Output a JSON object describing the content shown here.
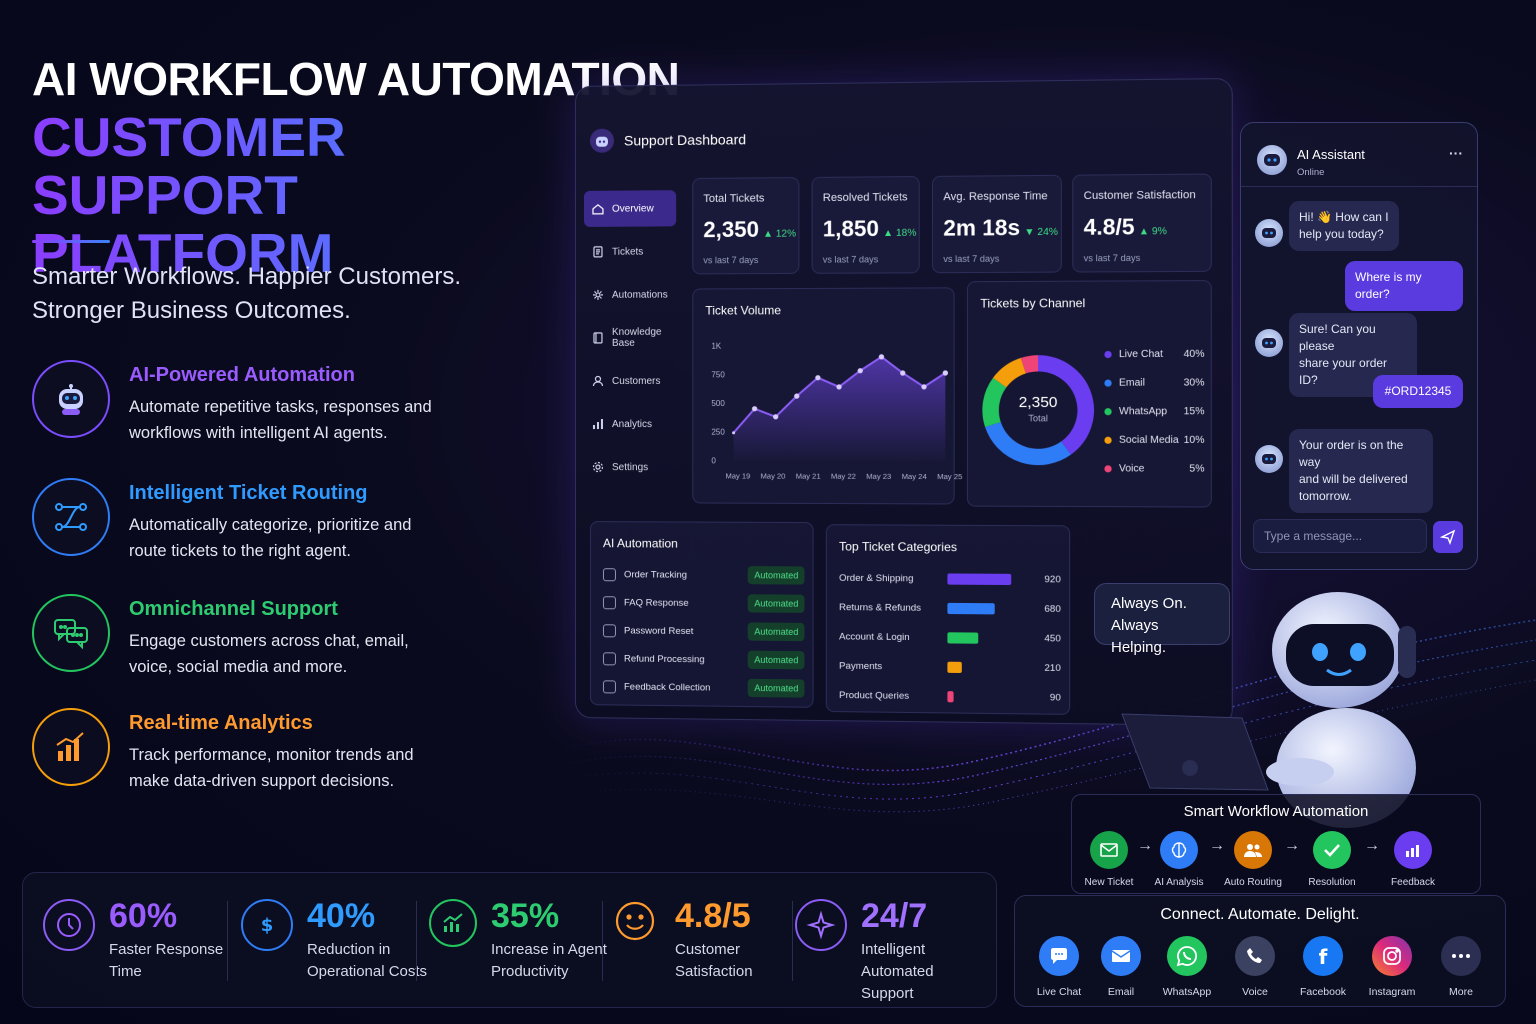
{
  "hero": {
    "title": "AI WORKFLOW AUTOMATION",
    "subtitle_line1": "CUSTOMER SUPPORT",
    "subtitle_line2": "PLATFORM",
    "tagline_line1": "Smarter Workflows. Happier Customers.",
    "tagline_line2": "Stronger Business Outcomes."
  },
  "features": [
    {
      "title": "AI-Powered Automation",
      "desc_line1": "Automate repetitive tasks, responses and",
      "desc_line2": "workflows with intelligent AI agents.",
      "color": "#9b5cff",
      "icon": "robot-icon"
    },
    {
      "title": "Intelligent Ticket Routing",
      "desc_line1": "Automatically categorize, prioritize and",
      "desc_line2": "route tickets to the right agent.",
      "color": "#2f9bff",
      "icon": "routing-icon"
    },
    {
      "title": "Omnichannel Support",
      "desc_line1": "Engage customers across chat, email,",
      "desc_line2": "voice, social media and more.",
      "color": "#2ecc71",
      "icon": "chat-bubbles-icon"
    },
    {
      "title": "Real-time Analytics",
      "desc_line1": "Track performance, monitor trends and",
      "desc_line2": "make data-driven support decisions.",
      "color": "#ff9a2e",
      "icon": "bar-chart-icon"
    }
  ],
  "stats": [
    {
      "value": "60%",
      "label_line1": "Faster Response",
      "label_line2": "Time",
      "color": "#9b5cff",
      "icon": "clock-icon"
    },
    {
      "value": "40%",
      "label_line1": "Reduction in",
      "label_line2": "Operational Costs",
      "color": "#2f9bff",
      "icon": "dollar-icon"
    },
    {
      "value": "35%",
      "label_line1": "Increase in Agent",
      "label_line2": "Productivity",
      "color": "#2ecc71",
      "icon": "trend-up-icon"
    },
    {
      "value": "4.8/5",
      "label_line1": "Customer",
      "label_line2": "Satisfaction",
      "color": "#ff9a2e",
      "icon": "smile-icon"
    },
    {
      "value": "24/7",
      "label_line1": "Intelligent Automated",
      "label_line2": "Support",
      "color": "#a070ff",
      "icon": "sparkle-icon"
    }
  ],
  "dashboard": {
    "title": "Support Dashboard",
    "nav": [
      {
        "label": "Overview",
        "active": true,
        "icon": "home-icon"
      },
      {
        "label": "Tickets",
        "active": false,
        "icon": "ticket-icon"
      },
      {
        "label": "Automations",
        "active": false,
        "icon": "gear-automation-icon"
      },
      {
        "label": "Knowledge Base",
        "active": false,
        "icon": "book-icon"
      },
      {
        "label": "Customers",
        "active": false,
        "icon": "user-icon"
      },
      {
        "label": "Analytics",
        "active": false,
        "icon": "analytics-icon"
      },
      {
        "label": "Settings",
        "active": false,
        "icon": "settings-icon"
      }
    ],
    "kpis": [
      {
        "label": "Total Tickets",
        "value": "2,350",
        "delta": "▲ 12%",
        "foot": "vs last 7 days"
      },
      {
        "label": "Resolved Tickets",
        "value": "1,850",
        "delta": "▲ 18%",
        "foot": "vs last 7 days"
      },
      {
        "label": "Avg. Response Time",
        "value": "2m 18s",
        "delta": "▼ 24%",
        "foot": "vs last 7 days"
      },
      {
        "label": "Customer Satisfaction",
        "value": "4.8/5",
        "delta": "▲ 9%",
        "foot": "vs last 7 days"
      }
    ],
    "ticket_volume_title": "Ticket Volume",
    "channel_title": "Tickets by Channel",
    "donut_value": "2,350",
    "donut_label": "Total",
    "automation_title": "AI Automation",
    "automations": [
      {
        "label": "Order Tracking",
        "status": "Automated"
      },
      {
        "label": "FAQ Response",
        "status": "Automated"
      },
      {
        "label": "Password Reset",
        "status": "Automated"
      },
      {
        "label": "Refund Processing",
        "status": "Automated"
      },
      {
        "label": "Feedback Collection",
        "status": "Automated"
      }
    ],
    "categories_title": "Top Ticket Categories"
  },
  "chart_data": [
    {
      "type": "area",
      "title": "Ticket Volume",
      "categories": [
        "May 19",
        "May 20",
        "May 21",
        "May 22",
        "May 23",
        "May 24",
        "May 25"
      ],
      "x": [
        "May 19",
        "May 19.5",
        "May 20",
        "May 20.5",
        "May 21",
        "May 22",
        "May 22.5",
        "May 23",
        "May 23.5",
        "May 24",
        "May 25"
      ],
      "values": [
        240,
        450,
        380,
        560,
        720,
        640,
        780,
        900,
        760,
        640,
        760
      ],
      "y_ticks": [
        "0",
        "250",
        "500",
        "750",
        "1K"
      ],
      "ylim": [
        0,
        1000
      ],
      "color": "#8b5cf6"
    },
    {
      "type": "pie",
      "title": "Tickets by Channel",
      "categories": [
        "Live Chat",
        "Email",
        "WhatsApp",
        "Social Media",
        "Voice"
      ],
      "values": [
        40,
        30,
        15,
        10,
        5
      ],
      "labels": [
        "40%",
        "30%",
        "15%",
        "10%",
        "5%"
      ],
      "colors": [
        "#6a3df0",
        "#2f7df6",
        "#22c55e",
        "#f59e0b",
        "#ef4477"
      ]
    },
    {
      "type": "bar",
      "title": "Top Ticket Categories",
      "categories": [
        "Order & Shipping",
        "Returns & Refunds",
        "Account & Login",
        "Payments",
        "Product Queries"
      ],
      "values": [
        920,
        680,
        450,
        210,
        90
      ],
      "colors": [
        "#6a3df0",
        "#2f7df6",
        "#22c55e",
        "#f59e0b",
        "#ef4477"
      ]
    }
  ],
  "chat": {
    "name": "AI Assistant",
    "status": "Online",
    "messages": [
      {
        "from": "bot",
        "line1": "Hi! 👋 How can I",
        "line2": "help you today?"
      },
      {
        "from": "user",
        "line1": "Where is my order?"
      },
      {
        "from": "bot",
        "line1": "Sure! Can you please",
        "line2": "share your order ID?"
      },
      {
        "from": "user",
        "line1": "#ORD12345"
      },
      {
        "from": "bot",
        "line1": "Your order is on the way",
        "line2": "and will be delivered",
        "line3": "tomorrow."
      }
    ],
    "placeholder": "Type a message...",
    "menu": "···"
  },
  "speech": {
    "line1": "Always On.",
    "line2": "Always Helping."
  },
  "workflow": {
    "title": "Smart Workflow Automation",
    "steps": [
      {
        "label": "New Ticket",
        "color": "#16a34a",
        "icon": "mail-icon"
      },
      {
        "label": "AI Analysis",
        "color": "#2f7df6",
        "icon": "brain-icon"
      },
      {
        "label": "Auto Routing",
        "color": "#d97706",
        "icon": "users-icon"
      },
      {
        "label": "Resolution",
        "color": "#22c55e",
        "icon": "check-icon"
      },
      {
        "label": "Feedback",
        "color": "#6a3df0",
        "icon": "chart-icon"
      }
    ]
  },
  "channels": {
    "title": "Connect. Automate. Delight.",
    "items": [
      {
        "label": "Live Chat",
        "color": "#2f7df6",
        "icon": "live-chat-icon"
      },
      {
        "label": "Email",
        "color": "#2f7df6",
        "icon": "email-icon"
      },
      {
        "label": "WhatsApp",
        "color": "#22c55e",
        "icon": "whatsapp-icon"
      },
      {
        "label": "Voice",
        "color": "#3b4160",
        "icon": "phone-icon"
      },
      {
        "label": "Facebook",
        "color": "#1877f2",
        "icon": "facebook-icon"
      },
      {
        "label": "Instagram",
        "color": "#d6249f",
        "icon": "instagram-icon"
      },
      {
        "label": "More",
        "color": "#2c2f52",
        "icon": "more-icon"
      }
    ]
  }
}
